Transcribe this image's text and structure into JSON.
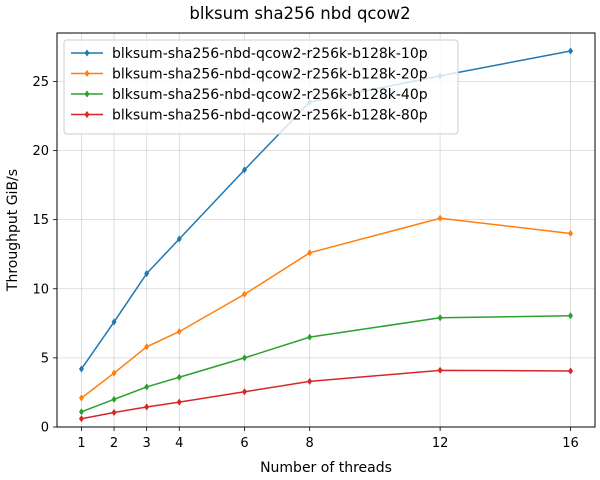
{
  "chart_data": {
    "type": "line",
    "title": "blksum sha256 nbd qcow2",
    "xlabel": "Number of threads",
    "ylabel": "Throughput GiB/s",
    "x": [
      1,
      2,
      3,
      4,
      6,
      8,
      12,
      16
    ],
    "xticks": [
      1,
      2,
      3,
      4,
      6,
      8,
      12,
      16
    ],
    "yticks": [
      0,
      5,
      10,
      15,
      20,
      25
    ],
    "xlim": [
      0.25,
      16.75
    ],
    "ylim": [
      0,
      28.5
    ],
    "grid": true,
    "legend_position": "top-left",
    "series": [
      {
        "name": "blksum-sha256-nbd-qcow2-r256k-b128k-10p",
        "color": "#1f77b4",
        "values": [
          4.2,
          7.6,
          11.1,
          13.6,
          18.6,
          23.5,
          25.4,
          27.2
        ]
      },
      {
        "name": "blksum-sha256-nbd-qcow2-r256k-b128k-20p",
        "color": "#ff7f0e",
        "values": [
          2.1,
          3.9,
          5.8,
          6.9,
          9.6,
          12.6,
          15.1,
          14.0
        ]
      },
      {
        "name": "blksum-sha256-nbd-qcow2-r256k-b128k-40p",
        "color": "#2ca02c",
        "values": [
          1.1,
          2.0,
          2.9,
          3.6,
          5.0,
          6.5,
          7.9,
          8.05
        ]
      },
      {
        "name": "blksum-sha256-nbd-qcow2-r256k-b128k-80p",
        "color": "#d62728",
        "values": [
          0.6,
          1.05,
          1.45,
          1.8,
          2.55,
          3.3,
          4.1,
          4.05
        ]
      }
    ]
  }
}
